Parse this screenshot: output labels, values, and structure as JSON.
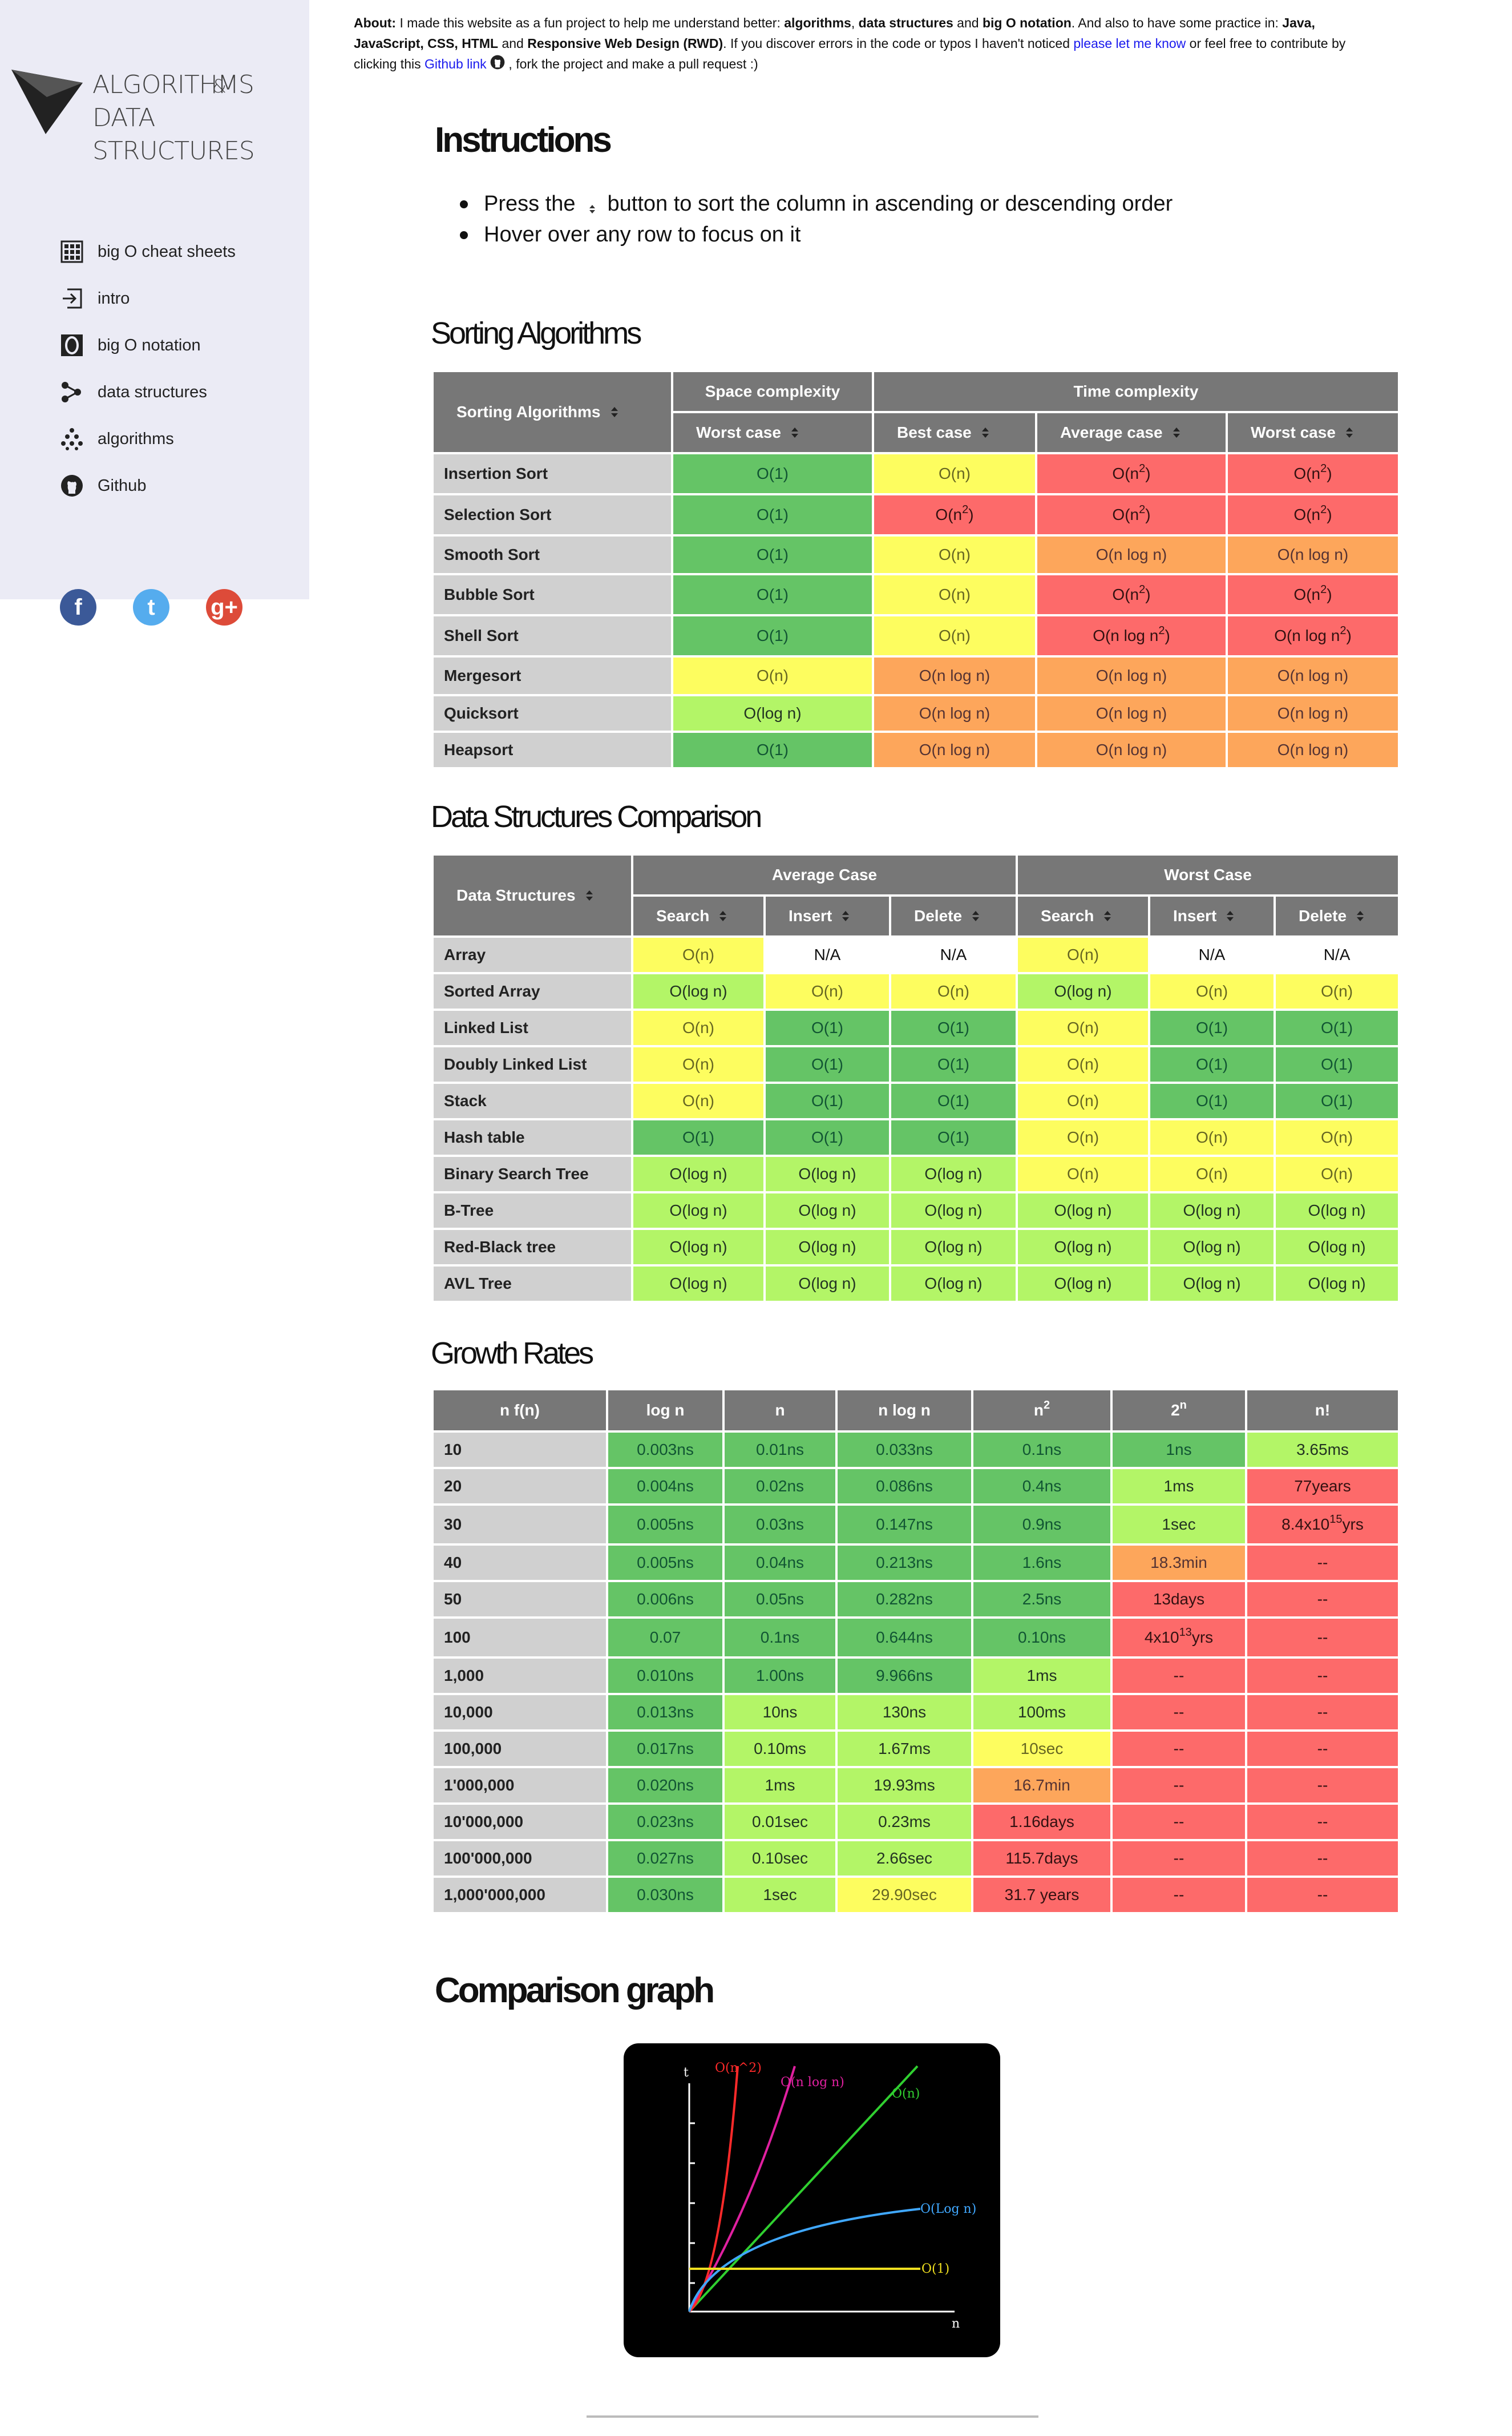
{
  "sidebar": {
    "logo_line1": "ALGORITHMS",
    "logo_amp": "&",
    "logo_line2": "DATA STRUCTURES",
    "nav": [
      {
        "label": "big O cheat sheets",
        "icon": "table-grid-icon"
      },
      {
        "label": "intro",
        "icon": "login-arrow-icon"
      },
      {
        "label": "big O notation",
        "icon": "letter-o-icon"
      },
      {
        "label": "data structures",
        "icon": "graph-nodes-icon"
      },
      {
        "label": "algorithms",
        "icon": "dots-tree-icon"
      },
      {
        "label": "Github",
        "icon": "github-icon"
      }
    ],
    "social": [
      {
        "name": "facebook",
        "glyph": "f",
        "color": "#3b5998"
      },
      {
        "name": "twitter",
        "glyph": "t",
        "color": "#55acee"
      },
      {
        "name": "google-plus",
        "glyph": "g+",
        "color": "#dd4b39"
      }
    ]
  },
  "about": {
    "label": "About:",
    "t1": " I made this website as a fun project to help me understand better: ",
    "b1": "algorithms",
    "t2": ", ",
    "b2": "data structures",
    "t3": " and ",
    "b3": "big O notation",
    "t4": ". And also to have some practice in: ",
    "b4": "Java, JavaScript, CSS, HTML",
    "t5": " and ",
    "b5": "Responsive Web Design (RWD)",
    "t6": ". If you discover errors in the code or typos I haven't noticed ",
    "link1": "please let me know",
    "t7": " or feel free to contribute by clicking this ",
    "link2": "Github link",
    "t8": " , fork the project and make a pull request :)"
  },
  "instructions": {
    "title": "Instructions",
    "item1_pre": "Press the",
    "item1_post": "button to sort the column in ascending or descending order",
    "item2": "Hover over any row to focus on it"
  },
  "sorting": {
    "title": "Sorting Algorithms",
    "head_label": "Sorting Algorithms",
    "group_space": "Space complexity",
    "group_time": "Time complexity",
    "cols": [
      "Worst case",
      "Best case",
      "Average case",
      "Worst case"
    ],
    "rows": [
      {
        "name": "Insertion Sort",
        "cells": [
          [
            "O(1)",
            "g"
          ],
          [
            "O(n)",
            "y"
          ],
          [
            "O(n<sup>2</sup>)",
            "r"
          ],
          [
            "O(n<sup>2</sup>)",
            "r"
          ]
        ]
      },
      {
        "name": "Selection Sort",
        "cells": [
          [
            "O(1)",
            "g"
          ],
          [
            "O(n<sup>2</sup>)",
            "r"
          ],
          [
            "O(n<sup>2</sup>)",
            "r"
          ],
          [
            "O(n<sup>2</sup>)",
            "r"
          ]
        ]
      },
      {
        "name": "Smooth Sort",
        "cells": [
          [
            "O(1)",
            "g"
          ],
          [
            "O(n)",
            "y"
          ],
          [
            "O(n log n)",
            "o"
          ],
          [
            "O(n log n)",
            "o"
          ]
        ]
      },
      {
        "name": "Bubble Sort",
        "cells": [
          [
            "O(1)",
            "g"
          ],
          [
            "O(n)",
            "y"
          ],
          [
            "O(n<sup>2</sup>)",
            "r"
          ],
          [
            "O(n<sup>2</sup>)",
            "r"
          ]
        ]
      },
      {
        "name": "Shell Sort",
        "cells": [
          [
            "O(1)",
            "g"
          ],
          [
            "O(n)",
            "y"
          ],
          [
            "O(n log n<sup>2</sup>)",
            "r"
          ],
          [
            "O(n log n<sup>2</sup>)",
            "r"
          ]
        ]
      },
      {
        "name": "Mergesort",
        "cells": [
          [
            "O(n)",
            "y"
          ],
          [
            "O(n log n)",
            "o"
          ],
          [
            "O(n log n)",
            "o"
          ],
          [
            "O(n log n)",
            "o"
          ]
        ]
      },
      {
        "name": "Quicksort",
        "cells": [
          [
            "O(log n)",
            "lg"
          ],
          [
            "O(n log n)",
            "o"
          ],
          [
            "O(n log n)",
            "o"
          ],
          [
            "O(n log n)",
            "o"
          ]
        ]
      },
      {
        "name": "Heapsort",
        "cells": [
          [
            "O(1)",
            "g"
          ],
          [
            "O(n log n)",
            "o"
          ],
          [
            "O(n log n)",
            "o"
          ],
          [
            "O(n log n)",
            "o"
          ]
        ]
      }
    ]
  },
  "ds": {
    "title": "Data Structures Comparison",
    "head_label": "Data Structures",
    "group_avg": "Average Case",
    "group_worst": "Worst Case",
    "cols": [
      "Search",
      "Insert",
      "Delete",
      "Search",
      "Insert",
      "Delete"
    ],
    "rows": [
      {
        "name": "Array",
        "cells": [
          [
            "O(n)",
            "y"
          ],
          [
            "N/A",
            "w"
          ],
          [
            "N/A",
            "w"
          ],
          [
            "O(n)",
            "y"
          ],
          [
            "N/A",
            "w"
          ],
          [
            "N/A",
            "w"
          ]
        ]
      },
      {
        "name": "Sorted Array",
        "cells": [
          [
            "O(log n)",
            "lg"
          ],
          [
            "O(n)",
            "y"
          ],
          [
            "O(n)",
            "y"
          ],
          [
            "O(log n)",
            "lg"
          ],
          [
            "O(n)",
            "y"
          ],
          [
            "O(n)",
            "y"
          ]
        ]
      },
      {
        "name": "Linked List",
        "cells": [
          [
            "O(n)",
            "y"
          ],
          [
            "O(1)",
            "g"
          ],
          [
            "O(1)",
            "g"
          ],
          [
            "O(n)",
            "y"
          ],
          [
            "O(1)",
            "g"
          ],
          [
            "O(1)",
            "g"
          ]
        ]
      },
      {
        "name": "Doubly Linked List",
        "cells": [
          [
            "O(n)",
            "y"
          ],
          [
            "O(1)",
            "g"
          ],
          [
            "O(1)",
            "g"
          ],
          [
            "O(n)",
            "y"
          ],
          [
            "O(1)",
            "g"
          ],
          [
            "O(1)",
            "g"
          ]
        ]
      },
      {
        "name": "Stack",
        "cells": [
          [
            "O(n)",
            "y"
          ],
          [
            "O(1)",
            "g"
          ],
          [
            "O(1)",
            "g"
          ],
          [
            "O(n)",
            "y"
          ],
          [
            "O(1)",
            "g"
          ],
          [
            "O(1)",
            "g"
          ]
        ]
      },
      {
        "name": "Hash table",
        "cells": [
          [
            "O(1)",
            "g"
          ],
          [
            "O(1)",
            "g"
          ],
          [
            "O(1)",
            "g"
          ],
          [
            "O(n)",
            "y"
          ],
          [
            "O(n)",
            "y"
          ],
          [
            "O(n)",
            "y"
          ]
        ]
      },
      {
        "name": "Binary Search Tree",
        "cells": [
          [
            "O(log n)",
            "lg"
          ],
          [
            "O(log n)",
            "lg"
          ],
          [
            "O(log n)",
            "lg"
          ],
          [
            "O(n)",
            "y"
          ],
          [
            "O(n)",
            "y"
          ],
          [
            "O(n)",
            "y"
          ]
        ]
      },
      {
        "name": "B-Tree",
        "cells": [
          [
            "O(log n)",
            "lg"
          ],
          [
            "O(log n)",
            "lg"
          ],
          [
            "O(log n)",
            "lg"
          ],
          [
            "O(log n)",
            "lg"
          ],
          [
            "O(log n)",
            "lg"
          ],
          [
            "O(log n)",
            "lg"
          ]
        ]
      },
      {
        "name": "Red-Black tree",
        "cells": [
          [
            "O(log n)",
            "lg"
          ],
          [
            "O(log n)",
            "lg"
          ],
          [
            "O(log n)",
            "lg"
          ],
          [
            "O(log n)",
            "lg"
          ],
          [
            "O(log n)",
            "lg"
          ],
          [
            "O(log n)",
            "lg"
          ]
        ]
      },
      {
        "name": "AVL Tree",
        "cells": [
          [
            "O(log n)",
            "lg"
          ],
          [
            "O(log n)",
            "lg"
          ],
          [
            "O(log n)",
            "lg"
          ],
          [
            "O(log n)",
            "lg"
          ],
          [
            "O(log n)",
            "lg"
          ],
          [
            "O(log n)",
            "lg"
          ]
        ]
      }
    ]
  },
  "growth": {
    "title": "Growth Rates",
    "cols": [
      "n f(n)",
      "log n",
      "n",
      "n log n",
      "n<sup>2</sup>",
      "2<sup>n</sup>",
      "n!"
    ],
    "rows": [
      {
        "name": "10",
        "cells": [
          [
            "0.003ns",
            "g"
          ],
          [
            "0.01ns",
            "g"
          ],
          [
            "0.033ns",
            "g"
          ],
          [
            "0.1ns",
            "g"
          ],
          [
            "1ns",
            "g"
          ],
          [
            "3.65ms",
            "lg"
          ]
        ]
      },
      {
        "name": "20",
        "cells": [
          [
            "0.004ns",
            "g"
          ],
          [
            "0.02ns",
            "g"
          ],
          [
            "0.086ns",
            "g"
          ],
          [
            "0.4ns",
            "g"
          ],
          [
            "1ms",
            "lg"
          ],
          [
            "77years",
            "r"
          ]
        ]
      },
      {
        "name": "30",
        "cells": [
          [
            "0.005ns",
            "g"
          ],
          [
            "0.03ns",
            "g"
          ],
          [
            "0.147ns",
            "g"
          ],
          [
            "0.9ns",
            "g"
          ],
          [
            "1sec",
            "lg"
          ],
          [
            "8.4x10<sup>15</sup>yrs",
            "r"
          ]
        ]
      },
      {
        "name": "40",
        "cells": [
          [
            "0.005ns",
            "g"
          ],
          [
            "0.04ns",
            "g"
          ],
          [
            "0.213ns",
            "g"
          ],
          [
            "1.6ns",
            "g"
          ],
          [
            "18.3min",
            "o"
          ],
          [
            "--",
            "r"
          ]
        ]
      },
      {
        "name": "50",
        "cells": [
          [
            "0.006ns",
            "g"
          ],
          [
            "0.05ns",
            "g"
          ],
          [
            "0.282ns",
            "g"
          ],
          [
            "2.5ns",
            "g"
          ],
          [
            "13days",
            "r"
          ],
          [
            "--",
            "r"
          ]
        ]
      },
      {
        "name": "100",
        "cells": [
          [
            "0.07",
            "g"
          ],
          [
            "0.1ns",
            "g"
          ],
          [
            "0.644ns",
            "g"
          ],
          [
            "0.10ns",
            "g"
          ],
          [
            "4x10<sup>13</sup>yrs",
            "r"
          ],
          [
            "--",
            "r"
          ]
        ]
      },
      {
        "name": "1,000",
        "cells": [
          [
            "0.010ns",
            "g"
          ],
          [
            "1.00ns",
            "g"
          ],
          [
            "9.966ns",
            "g"
          ],
          [
            "1ms",
            "lg"
          ],
          [
            "--",
            "r"
          ],
          [
            "--",
            "r"
          ]
        ]
      },
      {
        "name": "10,000",
        "cells": [
          [
            "0.013ns",
            "g"
          ],
          [
            "10ns",
            "lg"
          ],
          [
            "130ns",
            "lg"
          ],
          [
            "100ms",
            "lg"
          ],
          [
            "--",
            "r"
          ],
          [
            "--",
            "r"
          ]
        ]
      },
      {
        "name": "100,000",
        "cells": [
          [
            "0.017ns",
            "g"
          ],
          [
            "0.10ms",
            "lg"
          ],
          [
            "1.67ms",
            "lg"
          ],
          [
            "10sec",
            "y"
          ],
          [
            "--",
            "r"
          ],
          [
            "--",
            "r"
          ]
        ]
      },
      {
        "name": "1'000,000",
        "cells": [
          [
            "0.020ns",
            "g"
          ],
          [
            "1ms",
            "lg"
          ],
          [
            "19.93ms",
            "lg"
          ],
          [
            "16.7min",
            "o"
          ],
          [
            "--",
            "r"
          ],
          [
            "--",
            "r"
          ]
        ]
      },
      {
        "name": "10'000,000",
        "cells": [
          [
            "0.023ns",
            "g"
          ],
          [
            "0.01sec",
            "lg"
          ],
          [
            "0.23ms",
            "lg"
          ],
          [
            "1.16days",
            "r"
          ],
          [
            "--",
            "r"
          ],
          [
            "--",
            "r"
          ]
        ]
      },
      {
        "name": "100'000,000",
        "cells": [
          [
            "0.027ns",
            "g"
          ],
          [
            "0.10sec",
            "lg"
          ],
          [
            "2.66sec",
            "lg"
          ],
          [
            "115.7days",
            "r"
          ],
          [
            "--",
            "r"
          ],
          [
            "--",
            "r"
          ]
        ]
      },
      {
        "name": "1,000'000,000",
        "cells": [
          [
            "0.030ns",
            "g"
          ],
          [
            "1sec",
            "lg"
          ],
          [
            "29.90sec",
            "y"
          ],
          [
            "31.7 years",
            "r"
          ],
          [
            "--",
            "r"
          ],
          [
            "--",
            "r"
          ]
        ]
      }
    ]
  },
  "graph": {
    "title": "Comparison graph",
    "axis_y": "t",
    "axis_x": "n",
    "labels": [
      {
        "text": "O(n^2)",
        "color": "#ff2a2a"
      },
      {
        "text": "O(n log n)",
        "color": "#e020a0"
      },
      {
        "text": "O(n)",
        "color": "#30d030"
      },
      {
        "text": "O(Log n)",
        "color": "#40a8ff"
      },
      {
        "text": "O(1)",
        "color": "#f0e020"
      }
    ]
  }
}
